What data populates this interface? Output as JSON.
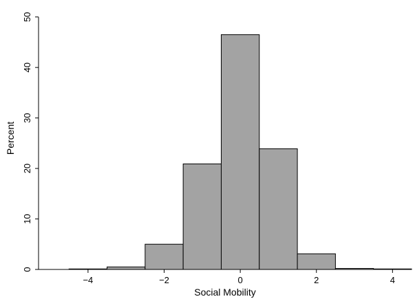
{
  "chart_data": {
    "type": "bar",
    "title": "",
    "xlabel": "Social Mobility",
    "ylabel": "Percent",
    "bin_width": 1,
    "bins": [
      {
        "center": -4,
        "value": 0.1
      },
      {
        "center": -3,
        "value": 0.5
      },
      {
        "center": -2,
        "value": 5.0
      },
      {
        "center": -1,
        "value": 20.9
      },
      {
        "center": 0,
        "value": 46.5
      },
      {
        "center": 1,
        "value": 23.9
      },
      {
        "center": 2,
        "value": 3.1
      },
      {
        "center": 3,
        "value": 0.2
      },
      {
        "center": 4,
        "value": 0.1
      }
    ],
    "xlim": [
      -5.3,
      4.5
    ],
    "ylim": [
      0,
      52
    ],
    "xticks": [
      -4,
      -2,
      0,
      2,
      4
    ],
    "xtick_labels": [
      "−4",
      "−2",
      "0",
      "2",
      "4"
    ],
    "yticks": [
      0,
      10,
      20,
      30,
      40,
      50
    ],
    "ytick_labels": [
      "0",
      "10",
      "20",
      "30",
      "40",
      "50"
    ],
    "bar_color": "#a3a3a3",
    "grid": false,
    "legend": "none"
  }
}
